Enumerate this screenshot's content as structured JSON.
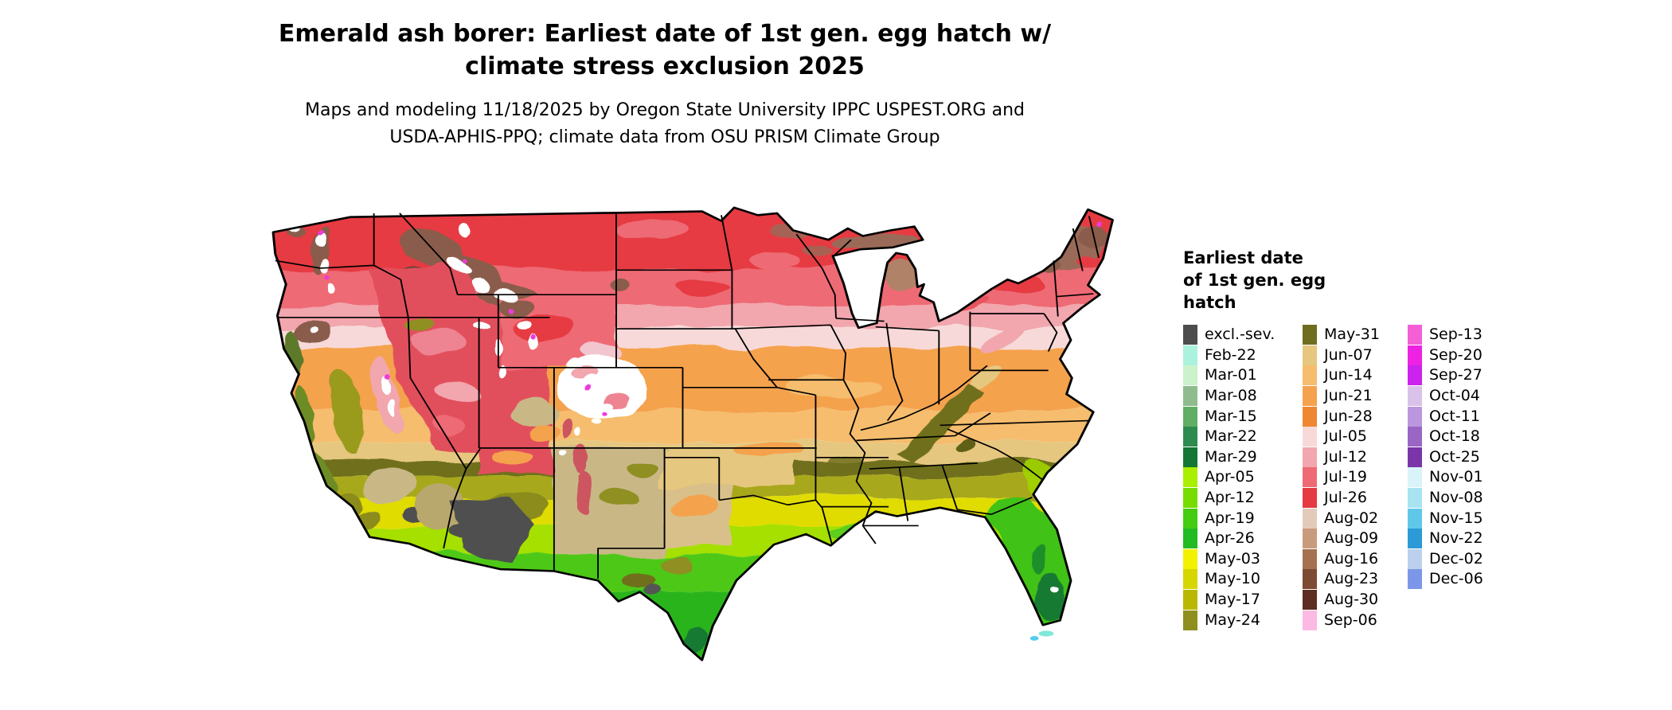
{
  "title": "Emerald ash borer: Earliest date of 1st gen. egg hatch w/ climate stress exclusion 2025",
  "subtitle": "Maps and modeling 11/18/2025 by Oregon State University IPPC USPEST.ORG and USDA-APHIS-PPQ; climate data from OSU PRISM Climate Group",
  "legend": {
    "title": "Earliest date of 1st gen. egg hatch",
    "columns": [
      {
        "entries": [
          {
            "label": "excl.-sev.",
            "color": "#4d4d4d"
          },
          {
            "label": "Feb-22",
            "color": "#aaf2dd"
          },
          {
            "label": "Mar-01",
            "color": "#ccf2cc"
          },
          {
            "label": "Mar-08",
            "color": "#8fbc8f"
          },
          {
            "label": "Mar-15",
            "color": "#5fae63"
          },
          {
            "label": "Mar-22",
            "color": "#2e8b50"
          },
          {
            "label": "Mar-29",
            "color": "#117733"
          },
          {
            "label": "Apr-05",
            "color": "#aaee00"
          },
          {
            "label": "Apr-12",
            "color": "#77dd00"
          },
          {
            "label": "Apr-19",
            "color": "#44cc11"
          },
          {
            "label": "Apr-26",
            "color": "#22bb22"
          },
          {
            "label": "May-03",
            "color": "#f2f200"
          },
          {
            "label": "May-10",
            "color": "#d6d600"
          },
          {
            "label": "May-17",
            "color": "#b8b800"
          },
          {
            "label": "May-24",
            "color": "#8f8f20"
          }
        ]
      },
      {
        "entries": [
          {
            "label": "May-31",
            "color": "#6e6e1e"
          },
          {
            "label": "Jun-07",
            "color": "#e6c77f"
          },
          {
            "label": "Jun-14",
            "color": "#f5bd6d"
          },
          {
            "label": "Jun-21",
            "color": "#f5a24e"
          },
          {
            "label": "Jun-28",
            "color": "#ef8632"
          },
          {
            "label": "Jul-05",
            "color": "#f7d9d9"
          },
          {
            "label": "Jul-12",
            "color": "#f2a6ad"
          },
          {
            "label": "Jul-19",
            "color": "#ee6a74"
          },
          {
            "label": "Jul-26",
            "color": "#e63a42"
          },
          {
            "label": "Aug-02",
            "color": "#e3cbbc"
          },
          {
            "label": "Aug-09",
            "color": "#c99b7d"
          },
          {
            "label": "Aug-16",
            "color": "#a5714f"
          },
          {
            "label": "Aug-23",
            "color": "#7d4a33"
          },
          {
            "label": "Aug-30",
            "color": "#5c2d20"
          },
          {
            "label": "Sep-06",
            "color": "#fcb9e3"
          }
        ]
      },
      {
        "entries": [
          {
            "label": "Sep-13",
            "color": "#f45fd6"
          },
          {
            "label": "Sep-20",
            "color": "#ee22e2"
          },
          {
            "label": "Sep-27",
            "color": "#cc22ee"
          },
          {
            "label": "Oct-04",
            "color": "#d9c2ea"
          },
          {
            "label": "Oct-11",
            "color": "#bb97dd"
          },
          {
            "label": "Oct-18",
            "color": "#9a66c6"
          },
          {
            "label": "Oct-25",
            "color": "#7a35a8"
          },
          {
            "label": "Nov-01",
            "color": "#d9f4f9"
          },
          {
            "label": "Nov-08",
            "color": "#a8e3f2"
          },
          {
            "label": "Nov-15",
            "color": "#5fc8e8"
          },
          {
            "label": "Nov-22",
            "color": "#2b9ad6"
          },
          {
            "label": "Dec-02",
            "color": "#bccfec"
          },
          {
            "label": "Dec-06",
            "color": "#7d97e8"
          }
        ]
      }
    ]
  }
}
